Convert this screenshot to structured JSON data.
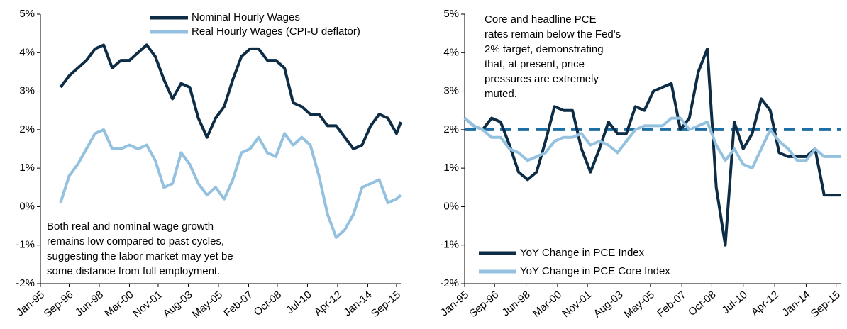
{
  "chart_data": [
    {
      "type": "line",
      "xlim": [
        "1995-01",
        "2015-12"
      ],
      "xticks": [
        {
          "value": "1995-01",
          "label": "Jan-95"
        },
        {
          "value": "1996-09",
          "label": "Sep-96"
        },
        {
          "value": "1998-06",
          "label": "Jun-98"
        },
        {
          "value": "2000-03",
          "label": "Mar-00"
        },
        {
          "value": "2001-11",
          "label": "Nov-01"
        },
        {
          "value": "2003-08",
          "label": "Aug-03"
        },
        {
          "value": "2005-05",
          "label": "May-05"
        },
        {
          "value": "2007-02",
          "label": "Feb-07"
        },
        {
          "value": "2008-10",
          "label": "Oct-08"
        },
        {
          "value": "2010-07",
          "label": "Jul-10"
        },
        {
          "value": "2012-04",
          "label": "Apr-12"
        },
        {
          "value": "2014-01",
          "label": "Jan-14"
        },
        {
          "value": "2015-09",
          "label": "Sep-15"
        }
      ],
      "ylim": [
        -2,
        5
      ],
      "yticks": [
        {
          "value": -2,
          "label": "-2%"
        },
        {
          "value": -1,
          "label": "-1%"
        },
        {
          "value": 0,
          "label": "0%"
        },
        {
          "value": 1,
          "label": "1%"
        },
        {
          "value": 2,
          "label": "2%"
        },
        {
          "value": 3,
          "label": "3%"
        },
        {
          "value": 4,
          "label": "4%"
        },
        {
          "value": 5,
          "label": "5%"
        }
      ],
      "legend": "top-right",
      "annotation": [
        "Both real and nominal wage growth",
        "remains low compared to past cycles,",
        "suggesting the labor market may yet be",
        "some distance from full employment."
      ],
      "x": [
        "1996-03",
        "1996-09",
        "1997-03",
        "1997-09",
        "1998-03",
        "1998-09",
        "1999-03",
        "1999-09",
        "2000-03",
        "2000-09",
        "2001-03",
        "2001-09",
        "2002-03",
        "2002-09",
        "2003-03",
        "2003-09",
        "2004-03",
        "2004-09",
        "2005-03",
        "2005-09",
        "2006-03",
        "2006-09",
        "2007-03",
        "2007-09",
        "2008-03",
        "2008-09",
        "2009-03",
        "2009-09",
        "2010-03",
        "2010-09",
        "2011-03",
        "2011-09",
        "2012-03",
        "2012-09",
        "2013-03",
        "2013-09",
        "2014-03",
        "2014-09",
        "2015-03",
        "2015-09",
        "2015-12"
      ],
      "series": [
        {
          "name": "Nominal Hourly Wages",
          "color": "#0d2c45",
          "values": [
            3.1,
            3.4,
            3.6,
            3.8,
            4.1,
            4.2,
            3.6,
            3.8,
            3.8,
            4.0,
            4.2,
            3.9,
            3.3,
            2.8,
            3.2,
            3.1,
            2.3,
            1.8,
            2.3,
            2.6,
            3.3,
            3.9,
            4.1,
            4.1,
            3.8,
            3.8,
            3.6,
            2.7,
            2.6,
            2.4,
            2.4,
            2.1,
            2.1,
            1.8,
            1.5,
            1.6,
            2.1,
            2.4,
            2.3,
            1.9,
            2.2
          ]
        },
        {
          "name": "Real Hourly Wages (CPI-U deflator)",
          "color": "#93c1df",
          "values": [
            0.1,
            0.8,
            1.1,
            1.5,
            1.9,
            2.0,
            1.5,
            1.5,
            1.6,
            1.5,
            1.6,
            1.2,
            0.5,
            0.6,
            1.4,
            1.1,
            0.6,
            0.3,
            0.5,
            0.2,
            0.7,
            1.4,
            1.5,
            1.8,
            1.4,
            1.3,
            1.9,
            1.6,
            1.8,
            1.6,
            0.8,
            -0.2,
            -0.8,
            -0.6,
            -0.2,
            0.5,
            0.6,
            0.7,
            0.1,
            0.2,
            0.3
          ]
        }
      ]
    },
    {
      "type": "line",
      "xlim": [
        "1995-01",
        "2015-12"
      ],
      "xticks": [
        {
          "value": "1995-01",
          "label": "Jan-95"
        },
        {
          "value": "1996-09",
          "label": "Sep-96"
        },
        {
          "value": "1998-06",
          "label": "Jun-98"
        },
        {
          "value": "2000-03",
          "label": "Mar-00"
        },
        {
          "value": "2001-11",
          "label": "Nov-01"
        },
        {
          "value": "2003-08",
          "label": "Aug-03"
        },
        {
          "value": "2005-05",
          "label": "May-05"
        },
        {
          "value": "2007-02",
          "label": "Feb-07"
        },
        {
          "value": "2008-10",
          "label": "Oct-08"
        },
        {
          "value": "2010-07",
          "label": "Jul-10"
        },
        {
          "value": "2012-04",
          "label": "Apr-12"
        },
        {
          "value": "2014-01",
          "label": "Jan-14"
        },
        {
          "value": "2015-09",
          "label": "Sep-15"
        }
      ],
      "ylim": [
        -2,
        5
      ],
      "yticks": [
        {
          "value": -2,
          "label": "-2%"
        },
        {
          "value": -1,
          "label": "-1%"
        },
        {
          "value": 0,
          "label": "0%"
        },
        {
          "value": 1,
          "label": "1%"
        },
        {
          "value": 2,
          "label": "2%"
        },
        {
          "value": 3,
          "label": "3%"
        },
        {
          "value": 4,
          "label": "4%"
        },
        {
          "value": 5,
          "label": "5%"
        }
      ],
      "legend": "bottom-left",
      "annotation": [
        "Core and headline PCE",
        "rates remain below the Fed's",
        "2% target, demonstrating",
        "that, at present, price",
        "pressures are extremely",
        "muted."
      ],
      "target": {
        "value": 2,
        "color": "#1f6ea3",
        "dashed": true
      },
      "x": [
        "1995-01",
        "1995-07",
        "1996-01",
        "1996-07",
        "1997-01",
        "1997-07",
        "1998-01",
        "1998-07",
        "1999-01",
        "1999-07",
        "2000-01",
        "2000-07",
        "2001-01",
        "2001-07",
        "2002-01",
        "2002-07",
        "2003-01",
        "2003-07",
        "2004-01",
        "2004-07",
        "2005-01",
        "2005-07",
        "2006-01",
        "2006-07",
        "2007-01",
        "2007-07",
        "2008-01",
        "2008-07",
        "2009-01",
        "2009-07",
        "2010-01",
        "2010-07",
        "2011-01",
        "2011-07",
        "2012-01",
        "2012-07",
        "2013-01",
        "2013-07",
        "2014-01",
        "2014-07",
        "2015-01",
        "2015-07",
        "2015-12"
      ],
      "series": [
        {
          "name": "YoY Change in PCE Index",
          "color": "#0d2c45",
          "values": [
            2.3,
            2.1,
            2.0,
            2.3,
            2.2,
            1.6,
            0.9,
            0.7,
            0.9,
            1.7,
            2.6,
            2.5,
            2.5,
            1.5,
            0.9,
            1.5,
            2.2,
            1.9,
            1.9,
            2.6,
            2.5,
            3.0,
            3.1,
            3.2,
            2.0,
            2.3,
            3.5,
            4.1,
            0.5,
            -1.0,
            2.2,
            1.5,
            1.9,
            2.8,
            2.5,
            1.4,
            1.3,
            1.3,
            1.3,
            1.5,
            0.3,
            0.3,
            0.3
          ]
        },
        {
          "name": "YoY Change in PCE Core Index",
          "color": "#93c1df",
          "values": [
            2.3,
            2.1,
            2.0,
            1.8,
            1.8,
            1.5,
            1.4,
            1.2,
            1.3,
            1.4,
            1.7,
            1.8,
            1.8,
            1.9,
            1.6,
            1.7,
            1.6,
            1.4,
            1.7,
            2.0,
            2.1,
            2.1,
            2.1,
            2.3,
            2.3,
            2.0,
            2.1,
            2.2,
            1.6,
            1.2,
            1.5,
            1.1,
            1.0,
            1.5,
            2.0,
            1.7,
            1.5,
            1.2,
            1.2,
            1.5,
            1.3,
            1.3,
            1.3
          ]
        }
      ]
    }
  ]
}
